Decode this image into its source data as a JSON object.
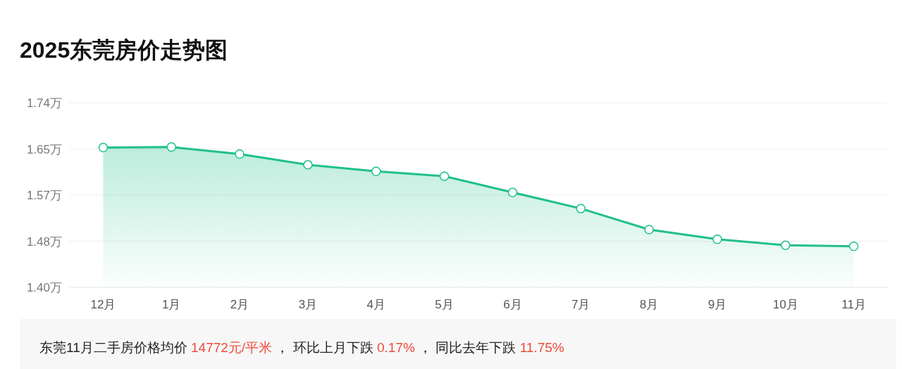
{
  "chart_data": {
    "type": "area",
    "title": "2025东莞房价走势图",
    "categories": [
      "12月",
      "1月",
      "2月",
      "3月",
      "4月",
      "5月",
      "6月",
      "7月",
      "8月",
      "9月",
      "10月",
      "11月"
    ],
    "values": [
      1.656,
      1.657,
      1.644,
      1.624,
      1.612,
      1.603,
      1.573,
      1.543,
      1.504,
      1.486,
      1.475,
      1.473
    ],
    "color": "#20c08a",
    "marker": "circle",
    "grid": "y",
    "ylim": [
      1.397,
      1.739
    ],
    "yticks": [
      {
        "value": 1.397,
        "label": "1.40万"
      },
      {
        "value": 1.4825,
        "label": "1.48万"
      },
      {
        "value": 1.568,
        "label": "1.57万"
      },
      {
        "value": 1.6535,
        "label": "1.65万"
      },
      {
        "value": 1.739,
        "label": "1.74万"
      }
    ],
    "annotations": [
      "东莞11月二手房价格均价 ",
      "14772元/平米",
      " ， 环比上月下跌 ",
      "0.17%",
      " ， 同比去年下跌 ",
      "11.75%"
    ]
  }
}
